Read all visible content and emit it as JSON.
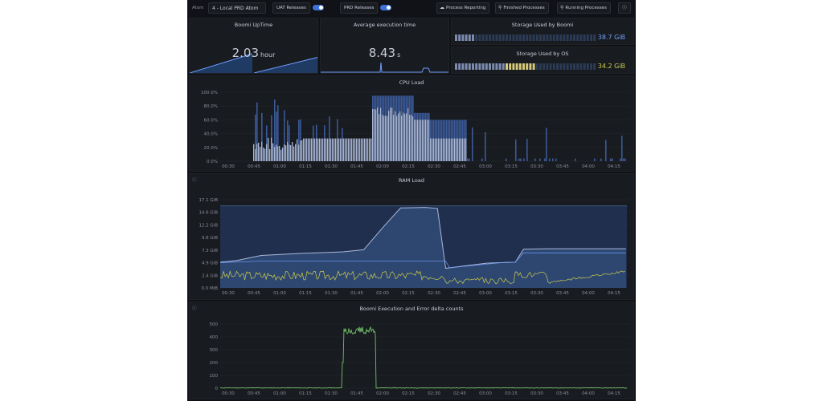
{
  "toolbar": {
    "atom_label": "Atom",
    "atom_value": "4 - Local PRD Atom",
    "uat_label": "UAT Releases",
    "prd_label": "PRD Releases",
    "buttons": [
      "Process Reporting",
      "Finished Processes",
      "Running Processes"
    ],
    "info_icon": "info-icon"
  },
  "panels": {
    "uptime": {
      "title": "Boomi UpTime",
      "value": "2.03",
      "unit": "hour"
    },
    "avg_exec": {
      "title": "Average execution time",
      "value": "8.43",
      "unit": "s"
    },
    "storage_boomi": {
      "title": "Storage Used by Boomi",
      "value": "38.7 GiB"
    },
    "storage_os": {
      "title": "Storage Used by OS",
      "value": "34.2 GiB"
    },
    "cpu": {
      "title": "CPU Load"
    },
    "ram": {
      "title": "RAM Load"
    },
    "exec": {
      "title": "Boomi Execution and Error delta counts"
    }
  },
  "colors": {
    "accent": "#3d71d9",
    "green": "#73bf69",
    "yellow": "#cccc4a",
    "blue": "#6e9fff"
  },
  "chart_data": [
    {
      "type": "bar",
      "title": "CPU Load",
      "x_ticks": [
        "00:30",
        "00:45",
        "01:00",
        "01:15",
        "01:30",
        "01:45",
        "02:00",
        "02:15",
        "02:30",
        "02:45",
        "03:00",
        "03:15",
        "03:30",
        "03:45",
        "04:00",
        "04:15"
      ],
      "y_ticks": [
        "0.0%",
        "20.0%",
        "40.0%",
        "60.0%",
        "80.0%",
        "100.0%"
      ],
      "ylim": [
        0,
        100
      ],
      "series": [
        {
          "values_desc": "stacked bars",
          "values": []
        }
      ]
    },
    {
      "type": "area",
      "title": "RAM Load",
      "x_ticks": [
        "00:30",
        "00:45",
        "01:00",
        "01:15",
        "01:30",
        "01:45",
        "02:00",
        "02:15",
        "02:30",
        "02:45",
        "03:00",
        "03:15",
        "03:30",
        "03:45",
        "04:00",
        "04:15"
      ],
      "y_ticks": [
        "0.0 MiB",
        "2.4 GiB",
        "4.9 GiB",
        "7.3 GiB",
        "9.8 GiB",
        "12.2 GiB",
        "14.6 GiB",
        "17.1 GiB"
      ],
      "ylim": [
        0,
        17.1
      ]
    },
    {
      "type": "line",
      "title": "Boomi Execution and Error delta counts",
      "x_ticks": [
        "00:30",
        "00:45",
        "01:00",
        "01:15",
        "01:30",
        "01:45",
        "02:00",
        "02:15",
        "02:30",
        "02:45",
        "03:00",
        "03:15",
        "03:30",
        "03:45",
        "04:00",
        "04:15"
      ],
      "y_ticks": [
        "0",
        "100",
        "200",
        "300",
        "400",
        "500"
      ],
      "ylim": [
        0,
        500
      ],
      "series": [
        {
          "values": [
            2,
            2,
            3,
            2,
            2,
            3,
            2,
            2,
            3,
            2,
            2,
            3,
            2,
            2,
            5,
            440,
            450,
            430,
            460,
            440,
            2,
            3,
            2,
            2,
            3,
            2,
            2,
            3,
            2,
            2,
            3,
            2,
            2,
            3,
            2,
            2,
            3,
            2,
            2,
            3,
            2,
            2,
            2,
            2
          ]
        }
      ]
    }
  ]
}
